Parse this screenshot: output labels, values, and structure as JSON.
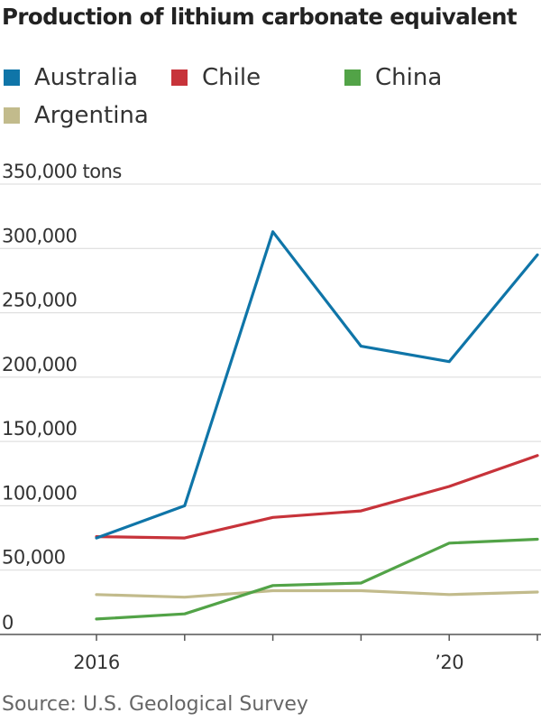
{
  "title": "Production of lithium carbonate equivalent",
  "source": "Source: U.S. Geological Survey",
  "chart_data": {
    "type": "line",
    "title": "Production of lithium carbonate equivalent",
    "x": [
      2016,
      2017,
      2018,
      2019,
      2020,
      2021
    ],
    "x_tick_labels": [
      "2016",
      "",
      "",
      "",
      "’20",
      ""
    ],
    "ylim": [
      0,
      350000
    ],
    "y_ticks": [
      0,
      50000,
      100000,
      150000,
      200000,
      250000,
      300000,
      350000
    ],
    "y_tick_labels": [
      "0",
      "50,000",
      "100,000",
      "150,000",
      "200,000",
      "250,000",
      "300,000",
      "350,000 tons"
    ],
    "grid": true,
    "legend_position": "top-left",
    "series": [
      {
        "name": "Australia",
        "color": "#0f75a8",
        "values": [
          75000,
          100000,
          313000,
          224000,
          212000,
          295000
        ]
      },
      {
        "name": "Chile",
        "color": "#c7333a",
        "values": [
          76000,
          75000,
          91000,
          96000,
          115000,
          139000
        ]
      },
      {
        "name": "China",
        "color": "#52a347",
        "values": [
          12000,
          16000,
          38000,
          40000,
          71000,
          74000
        ]
      },
      {
        "name": "Argentina",
        "color": "#c2bb8c",
        "values": [
          31000,
          29000,
          34000,
          34000,
          31000,
          33000
        ]
      }
    ]
  }
}
